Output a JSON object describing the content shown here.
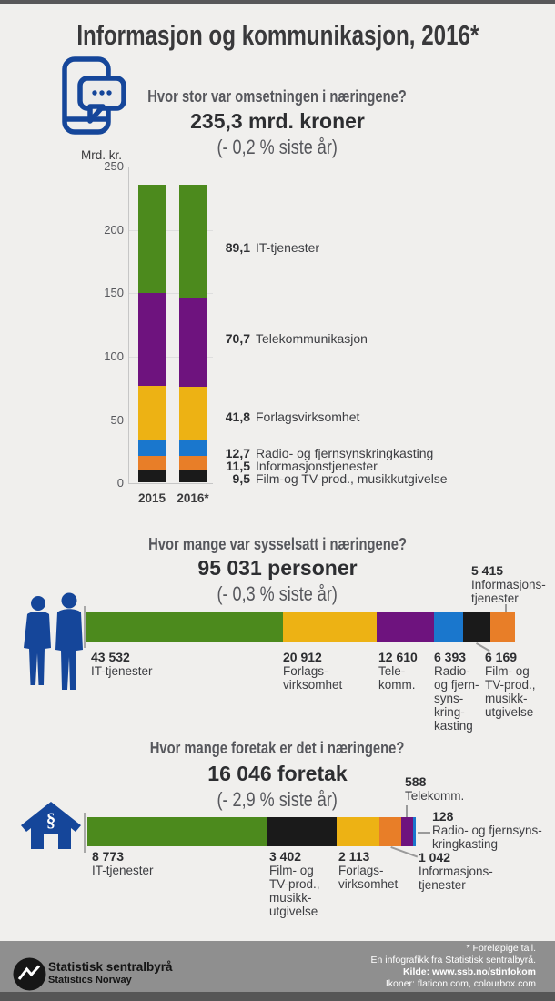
{
  "page": {
    "title": "Informasjon og kommunikasjon, 2016*"
  },
  "colors": {
    "it": "#4c8a1d",
    "telekom": "#6e137e",
    "forlag": "#edb214",
    "radio": "#1a77cd",
    "info": "#e87e28",
    "film": "#1a1a1a",
    "icon_blue": "#15469a",
    "heading_gray": "#56575c",
    "footer_gray": "#8f8f8f"
  },
  "sections": {
    "turnover": {
      "question": "Hvor stor var omsetningen i næringene?",
      "amount": "235,3 mrd. kroner",
      "change": "(- 0,2 % siste år)",
      "unit_label": "Mrd. kr.",
      "y_ticks": [
        "250",
        "200",
        "150",
        "100",
        "50",
        "0"
      ],
      "x_labels": [
        "2015",
        "2016*"
      ],
      "legend": [
        {
          "num": "89,1",
          "label": "IT-tjenester"
        },
        {
          "num": "70,7",
          "label": "Telekommunikasjon"
        },
        {
          "num": "41,8",
          "label": "Forlagsvirksomhet"
        },
        {
          "num": "12,7",
          "label": "Radio- og fjernsynskringkasting"
        },
        {
          "num": "11,5",
          "label": "Informasjonstjenester"
        },
        {
          "num": "9,5",
          "label": "Film-og TV-prod., musikkutgivelse"
        }
      ]
    },
    "employment": {
      "question": "Hvor mange var sysselsatt i næringene?",
      "amount": "95 031 personer",
      "change": "(- 0,3 % siste år)",
      "callout_top": {
        "num": "5 415",
        "lines": [
          "Informasjons-",
          "tjenester"
        ]
      },
      "below": [
        {
          "num": "43 532",
          "lines": [
            "IT-tjenester"
          ]
        },
        {
          "num": "20 912",
          "lines": [
            "Forlags-",
            "virksomhet"
          ]
        },
        {
          "num": "12 610",
          "lines": [
            "Tele-",
            "komm."
          ]
        },
        {
          "num": "6 393",
          "lines": [
            "Radio-",
            "og fjern-",
            "syns-",
            "kring-",
            "kasting"
          ]
        },
        {
          "num": "6 169",
          "lines": [
            "Film- og",
            "TV-prod.,",
            "musikk-",
            "utgivelse"
          ]
        }
      ]
    },
    "enterprises": {
      "question": "Hvor mange foretak er det i næringene?",
      "amount": "16 046 foretak",
      "change": "(- 2,9 % siste år)",
      "callout_top": {
        "num": "588",
        "lines": [
          "Telekomm."
        ]
      },
      "callout_right": {
        "num": "128",
        "lines": [
          "Radio- og fjernsyns-",
          "kringkasting"
        ]
      },
      "callout_bottom": {
        "num": "1 042",
        "lines": [
          "Informasjons-",
          "tjenester"
        ]
      },
      "below": [
        {
          "num": "8 773",
          "lines": [
            "IT-tjenester"
          ]
        },
        {
          "num": "3 402",
          "lines": [
            "Film- og",
            "TV-prod.,",
            "musikk-",
            "utgivelse"
          ]
        },
        {
          "num": "2 113",
          "lines": [
            "Forlags-",
            "virksomhet"
          ]
        }
      ]
    }
  },
  "footer": {
    "org_name": "Statistisk sentralbyrå",
    "org_name_en": "Statistics Norway",
    "notes": [
      "* Foreløpige tall.",
      "En infografikk fra Statistisk sentralbyrå.",
      "Kilde: www.ssb.no/stinfokom",
      "Ikoner: flaticon.com, colourbox.com"
    ]
  },
  "chart_data": [
    {
      "type": "bar",
      "stacked": true,
      "orientation": "vertical",
      "title": "Hvor stor var omsetningen i næringene?",
      "ylabel": "Mrd. kr.",
      "ylim": [
        0,
        250
      ],
      "gridlines": true,
      "categories": [
        "2015",
        "2016*"
      ],
      "labeled_year": "2016*",
      "total_2016": 235.3,
      "series": [
        {
          "name": "Film-og TV-prod., musikkutgivelse",
          "color": "#1a1a1a",
          "values": [
            9.6,
            9.5
          ]
        },
        {
          "name": "Informasjonstjenester",
          "color": "#e87e28",
          "values": [
            11.6,
            11.5
          ]
        },
        {
          "name": "Radio- og fjernsynskringkasting",
          "color": "#1a77cd",
          "values": [
            12.8,
            12.7
          ]
        },
        {
          "name": "Forlagsvirksomhet",
          "color": "#edb214",
          "values": [
            42.3,
            41.8
          ]
        },
        {
          "name": "Telekommunikasjon",
          "color": "#6e137e",
          "values": [
            73.6,
            70.7
          ]
        },
        {
          "name": "IT-tjenester",
          "color": "#4c8a1d",
          "values": [
            85.9,
            89.1
          ]
        }
      ]
    },
    {
      "type": "bar",
      "stacked": true,
      "orientation": "horizontal",
      "title": "Hvor mange var sysselsatt i næringene?",
      "total": 95031,
      "segments": [
        {
          "label": "IT-tjenester",
          "value": 43532,
          "color": "#4c8a1d"
        },
        {
          "label": "Forlagsvirksomhet",
          "value": 20912,
          "color": "#edb214"
        },
        {
          "label": "Telekommunikasjon",
          "value": 12610,
          "color": "#6e137e"
        },
        {
          "label": "Radio- og fjernsynskringkasting",
          "value": 6393,
          "color": "#1a77cd"
        },
        {
          "label": "Film- og TV-prod., musikkutgivelse",
          "value": 6169,
          "color": "#1a1a1a"
        },
        {
          "label": "Informasjonstjenester",
          "value": 5415,
          "color": "#e87e28"
        }
      ]
    },
    {
      "type": "bar",
      "stacked": true,
      "orientation": "horizontal",
      "title": "Hvor mange foretak er det i næringene?",
      "total": 16046,
      "segments": [
        {
          "label": "IT-tjenester",
          "value": 8773,
          "color": "#4c8a1d"
        },
        {
          "label": "Film- og TV-prod., musikkutgivelse",
          "value": 3402,
          "color": "#1a1a1a"
        },
        {
          "label": "Forlagsvirksomhet",
          "value": 2113,
          "color": "#edb214"
        },
        {
          "label": "Informasjonstjenester",
          "value": 1042,
          "color": "#e87e28"
        },
        {
          "label": "Telekommunikasjon",
          "value": 588,
          "color": "#6e137e"
        },
        {
          "label": "Radio- og fjernsynskringkasting",
          "value": 128,
          "color": "#1a77cd"
        }
      ]
    }
  ]
}
